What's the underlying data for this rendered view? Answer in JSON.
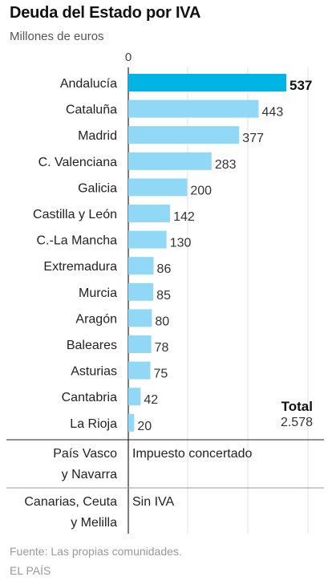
{
  "title": "Deuda del Estado por IVA",
  "subtitle": "Millones de euros",
  "source": "Fuente: Las propias comunidades.",
  "brand": "EL PAÍS",
  "chart_data": {
    "type": "bar",
    "orientation": "horizontal",
    "x_tick_labels": [
      "0"
    ],
    "xlim": [
      0,
      537
    ],
    "highlight_color": "#00b4e6",
    "bar_color": "#91d8f7",
    "categories": [
      "Andalucía",
      "Cataluña",
      "Madrid",
      "C. Valenciana",
      "Galicia",
      "Castilla y León",
      "C.-La Mancha",
      "Extremadura",
      "Murcia",
      "Aragón",
      "Baleares",
      "Asturias",
      "Cantabria",
      "La Rioja"
    ],
    "values": [
      537,
      443,
      377,
      283,
      200,
      142,
      130,
      86,
      85,
      80,
      78,
      75,
      42,
      20
    ],
    "value_labels": [
      "537",
      "443",
      "377",
      "283",
      "200",
      "142",
      "130",
      "86",
      "85",
      "80",
      "78",
      "75",
      "42",
      "20"
    ],
    "highlight": "Andalucía",
    "total": {
      "label": "Total",
      "value": "2.578"
    },
    "notes": [
      {
        "lines": [
          "País Vasco",
          "y Navarra"
        ],
        "text": "Impuesto concertado"
      },
      {
        "lines": [
          "Canarias, Ceuta",
          "y Melilla"
        ],
        "text": "Sin IVA"
      }
    ]
  }
}
